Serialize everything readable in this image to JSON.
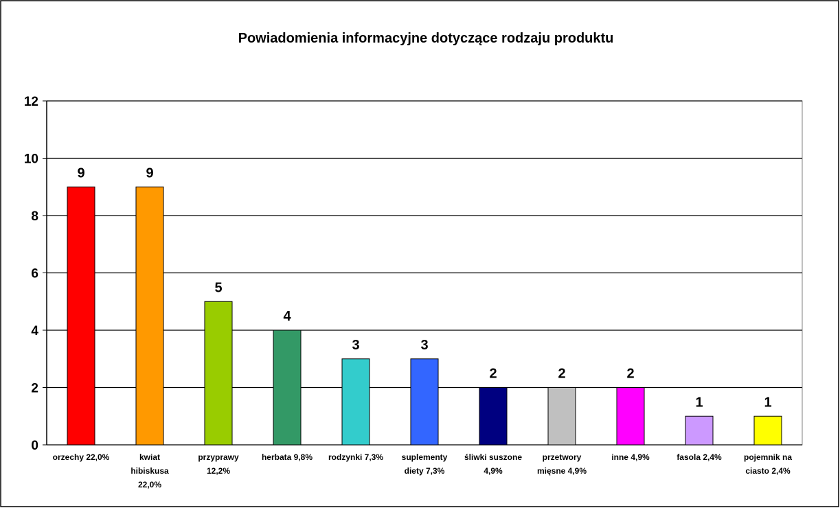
{
  "chart_data": {
    "type": "bar",
    "title": "Powiadomienia informacyjne dotyczące rodzaju produktu",
    "categories": [
      "orzechy 22,0%",
      "kwiat hibiskusa 22,0%",
      "przyprawy 12,2%",
      "herbata 9,8%",
      "rodzynki 7,3%",
      "suplementy diety 7,3%",
      "śliwki suszone 4,9%",
      "przetwory mięsne 4,9%",
      "inne 4,9%",
      "fasola 2,4%",
      "pojemnik na ciasto 2,4%"
    ],
    "values": [
      9,
      9,
      5,
      4,
      3,
      3,
      2,
      2,
      2,
      1,
      1
    ],
    "colors": [
      "#ff0000",
      "#ff9900",
      "#99cc00",
      "#339966",
      "#33cccc",
      "#3366ff",
      "#000080",
      "#c0c0c0",
      "#ff00ff",
      "#cc99ff",
      "#ffff00"
    ],
    "ylim": [
      0,
      12
    ],
    "yticks": [
      0,
      2,
      4,
      6,
      8,
      10,
      12
    ],
    "grid": true
  }
}
